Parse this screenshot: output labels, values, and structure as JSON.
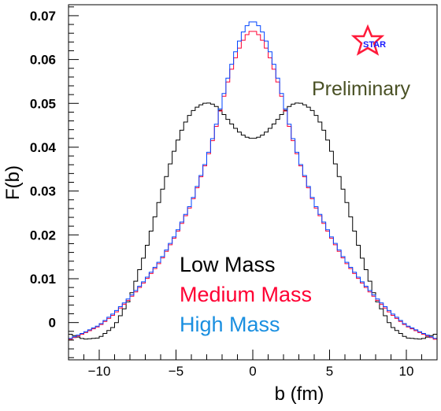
{
  "chart_data": {
    "type": "line",
    "style": "histogram-step",
    "xlabel": "b (fm)",
    "ylabel": "F(b)",
    "xlim": [
      -12,
      12
    ],
    "ylim": [
      -0.0085,
      0.0725
    ],
    "grid": false,
    "x_ticks": [
      -10,
      -5,
      0,
      5,
      10
    ],
    "y_ticks": [
      0,
      0.01,
      0.02,
      0.03,
      0.04,
      0.05,
      0.06,
      0.07
    ],
    "y_tick_labels": [
      "0",
      "0.01",
      "0.02",
      "0.03",
      "0.04",
      "0.05",
      "0.06",
      "0.07"
    ],
    "x_tick_labels": [
      "−10",
      "−5",
      "0",
      "5",
      "10"
    ],
    "legend_placement": "bottom-center",
    "annotation": "Preliminary",
    "logo_text": "STAR",
    "colors": {
      "low": "#000000",
      "medium": "#ff0033",
      "high": "#0044ff",
      "legend_high_text": "#1a8fe0",
      "annotation": "#4a5125"
    },
    "bin_width": 0.25,
    "series": [
      {
        "name": "Low Mass",
        "color": "#000000",
        "x": [
          -12,
          -11,
          -10,
          -9,
          -8,
          -7,
          -6,
          -5,
          -4.5,
          -4,
          -3.5,
          -3,
          -2.5,
          -2,
          -1.5,
          -1,
          -0.5,
          0,
          0.5,
          1,
          1.5,
          2,
          2.5,
          3,
          3.5,
          4,
          4.5,
          5,
          6,
          7,
          8,
          9,
          10,
          11,
          12
        ],
        "y": [
          -0.0025,
          -0.0038,
          -0.0035,
          -0.0008,
          0.0055,
          0.016,
          0.029,
          0.0405,
          0.045,
          0.048,
          0.0495,
          0.0502,
          0.0497,
          0.048,
          0.0458,
          0.0438,
          0.0424,
          0.0419,
          0.0424,
          0.0438,
          0.0458,
          0.048,
          0.0497,
          0.0502,
          0.0495,
          0.048,
          0.045,
          0.0405,
          0.029,
          0.016,
          0.0055,
          -0.0008,
          -0.0035,
          -0.0038,
          -0.0025
        ]
      },
      {
        "name": "Medium Mass",
        "color": "#ff0033",
        "x": [
          -12,
          -11,
          -10,
          -9,
          -8,
          -7,
          -6,
          -5,
          -4,
          -3,
          -2.5,
          -2,
          -1.5,
          -1,
          -0.5,
          0,
          0.5,
          1,
          1.5,
          2,
          2.5,
          3,
          4,
          5,
          6,
          7,
          8,
          9,
          10,
          11,
          12
        ],
        "y": [
          -0.004,
          -0.0025,
          -0.0008,
          0.002,
          0.0055,
          0.0095,
          0.014,
          0.02,
          0.027,
          0.037,
          0.043,
          0.05,
          0.0565,
          0.0617,
          0.0653,
          0.0668,
          0.0653,
          0.0617,
          0.0565,
          0.05,
          0.043,
          0.037,
          0.027,
          0.02,
          0.014,
          0.0095,
          0.0055,
          0.002,
          -0.0008,
          -0.0025,
          -0.004
        ]
      },
      {
        "name": "High Mass",
        "color": "#0044ff",
        "x": [
          -12,
          -11,
          -10,
          -9,
          -8,
          -7,
          -6,
          -5,
          -4,
          -3,
          -2.5,
          -2,
          -1.5,
          -1,
          -0.5,
          0,
          0.5,
          1,
          1.5,
          2,
          2.5,
          3,
          4,
          5,
          6,
          7,
          8,
          9,
          10,
          11,
          12
        ],
        "y": [
          -0.0038,
          -0.0023,
          -0.0006,
          0.0023,
          0.0058,
          0.0098,
          0.0143,
          0.0203,
          0.0273,
          0.0373,
          0.0435,
          0.0505,
          0.0575,
          0.0632,
          0.0673,
          0.069,
          0.0673,
          0.0632,
          0.0575,
          0.0505,
          0.0435,
          0.0373,
          0.0273,
          0.0203,
          0.0143,
          0.0098,
          0.0058,
          0.0023,
          -0.0006,
          -0.0023,
          -0.0038
        ]
      }
    ]
  }
}
